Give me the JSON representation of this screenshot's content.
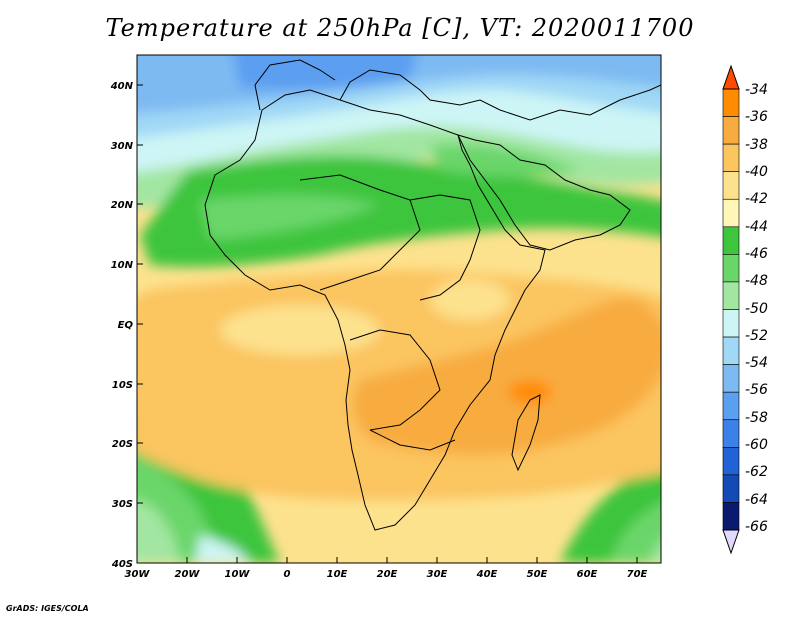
{
  "title": "Temperature at 250hPa [C], VT: 2020011700",
  "credit": "GrADS: IGES/COLA",
  "chart_data": {
    "type": "heatmap",
    "title": "Temperature at 250hPa [C], VT: 2020011700",
    "xlabel": "",
    "ylabel": "",
    "xlim": [
      -30,
      75
    ],
    "ylim": [
      -40,
      45
    ],
    "x_ticks": [
      "30W",
      "20W",
      "10W",
      "0",
      "10E",
      "20E",
      "30E",
      "40E",
      "50E",
      "60E",
      "70E"
    ],
    "y_ticks": [
      "40N",
      "30N",
      "20N",
      "10N",
      "EQ",
      "10S",
      "20S",
      "30S",
      "40S"
    ],
    "colorbar": {
      "levels": [
        "-34",
        "-36",
        "-38",
        "-40",
        "-42",
        "-44",
        "-46",
        "-48",
        "-50",
        "-52",
        "-54",
        "-56",
        "-58",
        "-60",
        "-62",
        "-64",
        "-66"
      ],
      "colors": [
        "#ff4a00",
        "#ff8c00",
        "#f8ac40",
        "#fbc560",
        "#fde28e",
        "#fff6b8",
        "#3dc53d",
        "#6ad66a",
        "#a2e6a2",
        "#cdf5f5",
        "#a0d8f6",
        "#7ebaf2",
        "#5b9ff0",
        "#3c80ea",
        "#2163d6",
        "#144ab8",
        "#0a1a6e"
      ],
      "orientation": "vertical",
      "placement": "right"
    }
  }
}
